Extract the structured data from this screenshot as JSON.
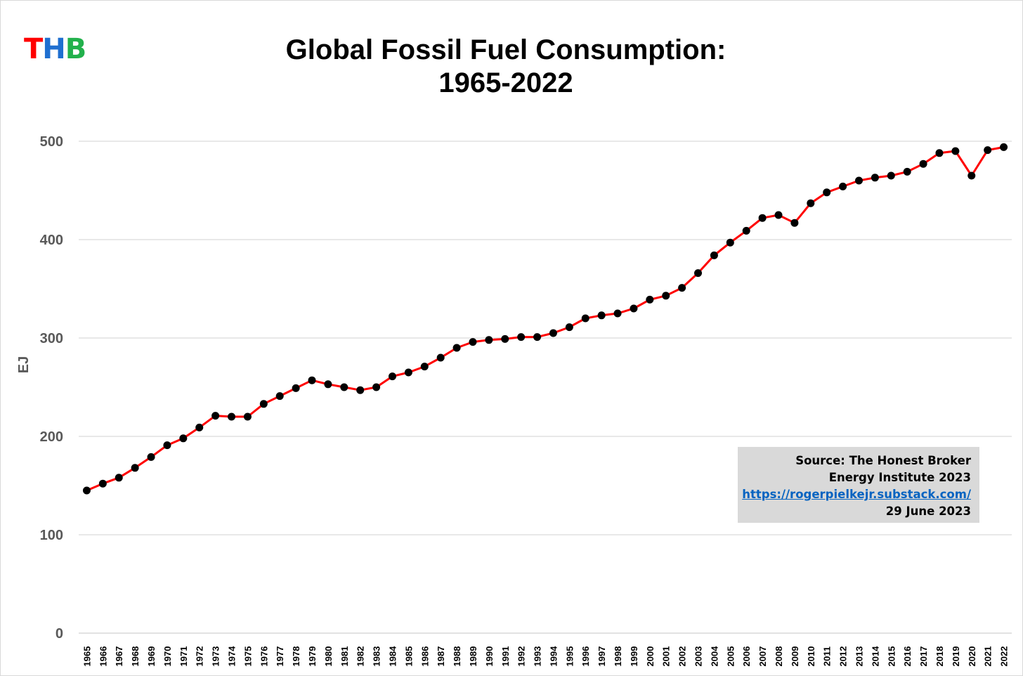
{
  "logo": {
    "letters": [
      "T",
      "H",
      "B"
    ],
    "colors": [
      "#ff0000",
      "#1f6fd0",
      "#22b14c"
    ]
  },
  "title": {
    "line1": "Global Fossil Fuel Consumption:",
    "line2": "1965-2022"
  },
  "source": {
    "line1": "Source: The Honest Broker",
    "line2": "Energy Institute 2023",
    "link": "https://rogerpielkejr.substack.com/",
    "date": "29 June 2023"
  },
  "colors": {
    "line": "#ff0000",
    "marker": "#000000",
    "grid": "#d9d9d9",
    "axis_text": "#595959",
    "source_bg": "#d9d9d9",
    "link": "#0563c1"
  },
  "chart_data": {
    "type": "line",
    "title": "Global Fossil Fuel Consumption: 1965-2022",
    "xlabel": "",
    "ylabel": "EJ",
    "ylim": [
      0,
      500
    ],
    "yticks": [
      0,
      100,
      200,
      300,
      400,
      500
    ],
    "grid": true,
    "categories": [
      "1965",
      "1966",
      "1967",
      "1968",
      "1969",
      "1970",
      "1971",
      "1972",
      "1973",
      "1974",
      "1975",
      "1976",
      "1977",
      "1978",
      "1979",
      "1980",
      "1981",
      "1982",
      "1983",
      "1984",
      "1985",
      "1986",
      "1987",
      "1988",
      "1989",
      "1990",
      "1991",
      "1992",
      "1993",
      "1994",
      "1995",
      "1996",
      "1997",
      "1998",
      "1999",
      "2000",
      "2001",
      "2002",
      "2003",
      "2004",
      "2005",
      "2006",
      "2007",
      "2008",
      "2009",
      "2010",
      "2011",
      "2012",
      "2013",
      "2014",
      "2015",
      "2016",
      "2017",
      "2018",
      "2019",
      "2020",
      "2021",
      "2022"
    ],
    "series": [
      {
        "name": "Fossil fuel consumption",
        "values": [
          145,
          152,
          158,
          168,
          179,
          191,
          198,
          209,
          221,
          220,
          220,
          233,
          241,
          249,
          257,
          253,
          250,
          247,
          250,
          261,
          265,
          271,
          280,
          290,
          296,
          298,
          299,
          301,
          301,
          305,
          311,
          320,
          323,
          325,
          330,
          339,
          343,
          351,
          366,
          384,
          397,
          409,
          422,
          425,
          417,
          437,
          448,
          454,
          460,
          463,
          465,
          469,
          477,
          488,
          490,
          465,
          491,
          494
        ]
      }
    ]
  }
}
